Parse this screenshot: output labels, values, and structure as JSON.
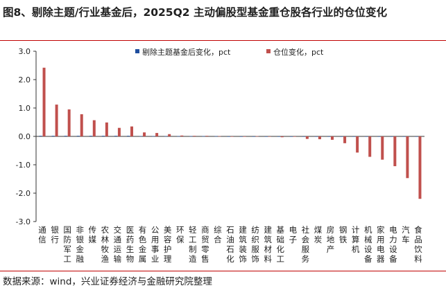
{
  "title": "图8、剔除主题/行业基金后，2025Q2 主动偏股型基金重仓股各行业的仓位变化",
  "source": "数据来源：wind，兴业证券经济与金融研究院整理",
  "colors": {
    "series_a": "#1f4e9e",
    "series_b": "#c0504d",
    "rule": "#c00000"
  },
  "chart_data": {
    "type": "bar",
    "categories": [
      "通信",
      "银行",
      "国防军工",
      "非银金融",
      "传媒",
      "农林牧渔",
      "交通运输",
      "医药生物",
      "有色金属",
      "公用事业",
      "美容护理",
      "环保",
      "轻工制造",
      "商贸零售",
      "综合",
      "石油石化",
      "建筑装饰",
      "纺织服饰",
      "建筑材料",
      "基础化工",
      "电子",
      "社会服务",
      "煤炭",
      "房地产",
      "钢铁",
      "计算机",
      "机械设备",
      "家用电器",
      "电力设备",
      "汽车",
      "食品饮料"
    ],
    "series": [
      {
        "name": "剔除主题基金后变化，pct",
        "values": [
          0.02,
          0.02,
          0.02,
          0.02,
          0.02,
          0.02,
          0.02,
          0.02,
          0.01,
          0.01,
          0.01,
          0.01,
          0.01,
          0.01,
          0.01,
          0,
          0,
          0,
          0,
          0,
          0,
          0,
          0,
          0,
          0,
          0,
          0,
          0,
          0,
          0,
          0
        ]
      },
      {
        "name": "仓位变化，pct",
        "values": [
          2.42,
          1.12,
          0.95,
          0.78,
          0.57,
          0.49,
          0.3,
          0.35,
          0.14,
          0.12,
          0.08,
          0.03,
          0.02,
          0.02,
          0.01,
          0,
          0,
          0.01,
          0,
          -0.03,
          0,
          -0.09,
          -0.1,
          -0.12,
          -0.24,
          -0.57,
          -0.72,
          -0.82,
          -1.05,
          -1.47,
          -2.2
        ]
      }
    ],
    "yticks": [
      "3.0",
      "2.0",
      "1.0",
      "0.0",
      "-1.0",
      "-2.0",
      "-3.0"
    ],
    "ylim": [
      -3,
      3
    ],
    "legend": "top"
  }
}
